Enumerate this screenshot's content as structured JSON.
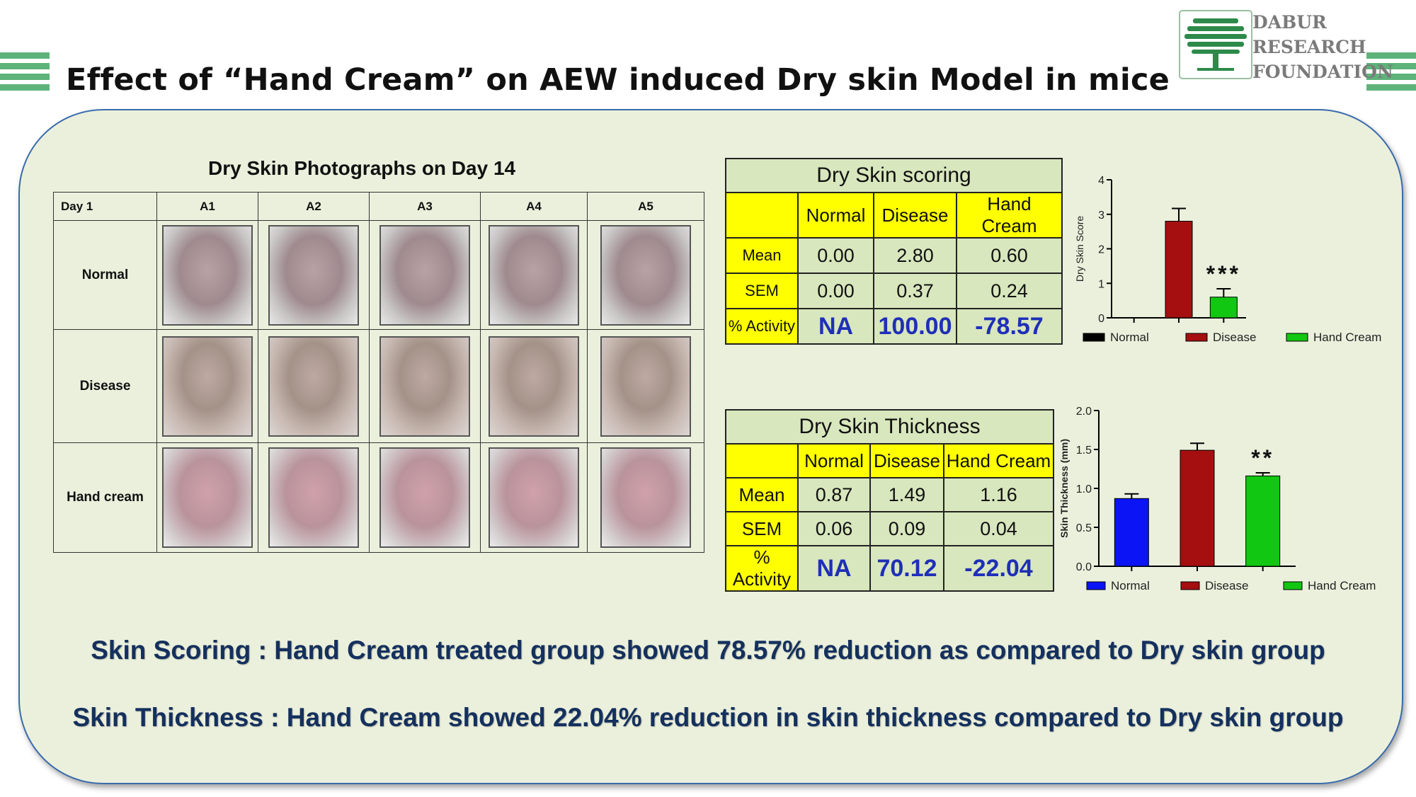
{
  "header": {
    "title": "Effect of “Hand Cream” on AEW induced Dry skin Model in mice",
    "logo_lines": [
      "DABUR",
      "RESEARCH",
      "FOUNDATION"
    ]
  },
  "photos": {
    "caption": "Dry Skin Photographs on Day 14",
    "corner_label": "Day 1",
    "columns": [
      "A1",
      "A2",
      "A3",
      "A4",
      "A5"
    ],
    "rows": [
      "Normal",
      "Disease",
      "Hand cream"
    ]
  },
  "scoring_table": {
    "title": "Dry Skin scoring",
    "columns": [
      "Normal",
      "Disease",
      "Hand Cream"
    ],
    "rows": [
      {
        "label": "Mean",
        "values": [
          "0.00",
          "2.80",
          "0.60"
        ]
      },
      {
        "label": "SEM",
        "values": [
          "0.00",
          "0.37",
          "0.24"
        ]
      },
      {
        "label": "% Activity",
        "values": [
          "NA",
          "100.00",
          "-78.57"
        ]
      }
    ]
  },
  "thickness_table": {
    "title": "Dry Skin Thickness",
    "columns": [
      "Normal",
      "Disease",
      "Hand Cream"
    ],
    "rows": [
      {
        "label": "Mean",
        "values": [
          "0.87",
          "1.49",
          "1.16"
        ]
      },
      {
        "label": "SEM",
        "values": [
          "0.06",
          "0.09",
          "0.04"
        ]
      },
      {
        "label": "% Activity",
        "values": [
          "NA",
          "70.12",
          "-22.04"
        ]
      }
    ]
  },
  "chart_data": [
    {
      "type": "bar",
      "categories": [
        "Normal",
        "Disease",
        "Hand Cream"
      ],
      "values": [
        0,
        2.8,
        0.6
      ],
      "errors": [
        0,
        0.37,
        0.24
      ],
      "colors": [
        "#000000",
        "#a50f0f",
        "#11c711"
      ],
      "significance": [
        "",
        "",
        "***"
      ],
      "ylabel": "Dry Skin Score",
      "ylim": [
        0,
        4
      ],
      "yticks": [
        "0",
        "1",
        "2",
        "3",
        "4"
      ],
      "legend": [
        "Normal",
        "Disease",
        "Hand Cream"
      ],
      "legend_position": "bottom"
    },
    {
      "type": "bar",
      "categories": [
        "Normal",
        "Disease",
        "Hand Cream"
      ],
      "values": [
        0.87,
        1.49,
        1.16
      ],
      "errors": [
        0.06,
        0.09,
        0.04
      ],
      "colors": [
        "#0a14f5",
        "#a50f0f",
        "#11c711"
      ],
      "significance": [
        "",
        "",
        "**"
      ],
      "ylabel": "Skin Thickness (mm)",
      "ylim": [
        0,
        2.0
      ],
      "yticks": [
        "0.0",
        "0.5",
        "1.0",
        "1.5",
        "2.0"
      ],
      "legend": [
        "Normal",
        "Disease",
        "Hand Cream"
      ],
      "legend_position": "bottom"
    }
  ],
  "summary": [
    "Skin Scoring : Hand Cream treated group showed 78.57% reduction as compared to Dry skin  group",
    "Skin Thickness : Hand Cream showed 22.04% reduction in skin thickness compared to Dry skin group"
  ]
}
